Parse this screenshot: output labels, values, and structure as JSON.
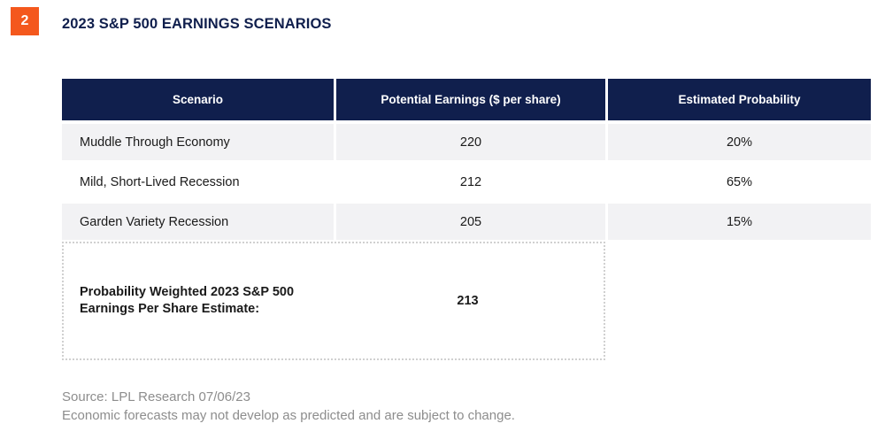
{
  "figure": {
    "number": "2",
    "title": "2023 S&P 500 EARNINGS SCENARIOS"
  },
  "table": {
    "columns": {
      "scenario": "Scenario",
      "earnings": "Potential Earnings ($ per share)",
      "probability": "Estimated Probability"
    },
    "rows": [
      {
        "scenario": "Muddle Through Economy",
        "earnings": "220",
        "probability": "20%"
      },
      {
        "scenario": "Mild, Short-Lived Recession",
        "earnings": "212",
        "probability": "65%"
      },
      {
        "scenario": "Garden Variety Recession",
        "earnings": "205",
        "probability": "15%"
      }
    ],
    "summary": {
      "label": "Probability Weighted 2023 S&P 500 Earnings Per Share Estimate:",
      "value": "213"
    }
  },
  "footer": {
    "source": "Source: LPL Research 07/06/23",
    "disclaimer": "Economic forecasts may not develop as predicted and are subject to change."
  },
  "colors": {
    "navy": "#101f4d",
    "orange": "#f4581d",
    "row_gray": "#f2f2f4",
    "text": "#1a1a1a",
    "muted_gray": "#8d8d8d",
    "dotted_border": "#d0d0d0"
  }
}
